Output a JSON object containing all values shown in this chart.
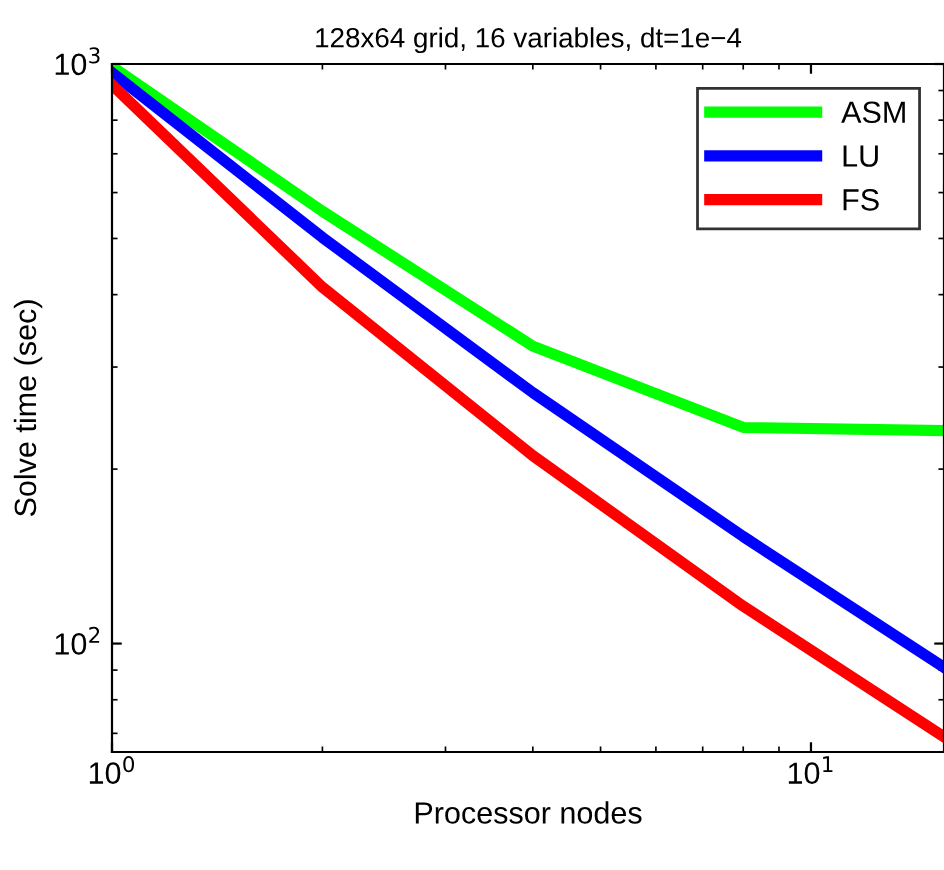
{
  "chart_data": {
    "type": "line",
    "title": "128x64 grid, 16 variables, dt=1e−4",
    "xlabel": "Processor nodes",
    "ylabel": "Solve time (sec)",
    "log": "xy",
    "xlim": [
      1,
      15.5
    ],
    "ylim": [
      65,
      1000
    ],
    "xticks": [
      {
        "value": 1,
        "label": "10$^{0}$"
      },
      {
        "value": 10,
        "label": "10$^{1}$"
      }
    ],
    "yticks": [
      {
        "value": 100,
        "label": "10$^{2}$"
      },
      {
        "value": 1000,
        "label": "10$^{3}$"
      }
    ],
    "x": [
      1,
      2,
      4,
      8,
      15.5
    ],
    "series": [
      {
        "name": "ASM",
        "color": "#00ff00",
        "values": [
          990,
          557,
          326,
          236,
          233
        ]
      },
      {
        "name": "LU",
        "color": "#0000ff",
        "values": [
          966,
          502,
          271,
          153,
          91
        ]
      },
      {
        "name": "FS",
        "color": "#ff0000",
        "values": [
          921,
          412,
          211,
          116,
          69
        ]
      }
    ],
    "grid": false,
    "legend": "top right",
    "line_style": "solid"
  }
}
